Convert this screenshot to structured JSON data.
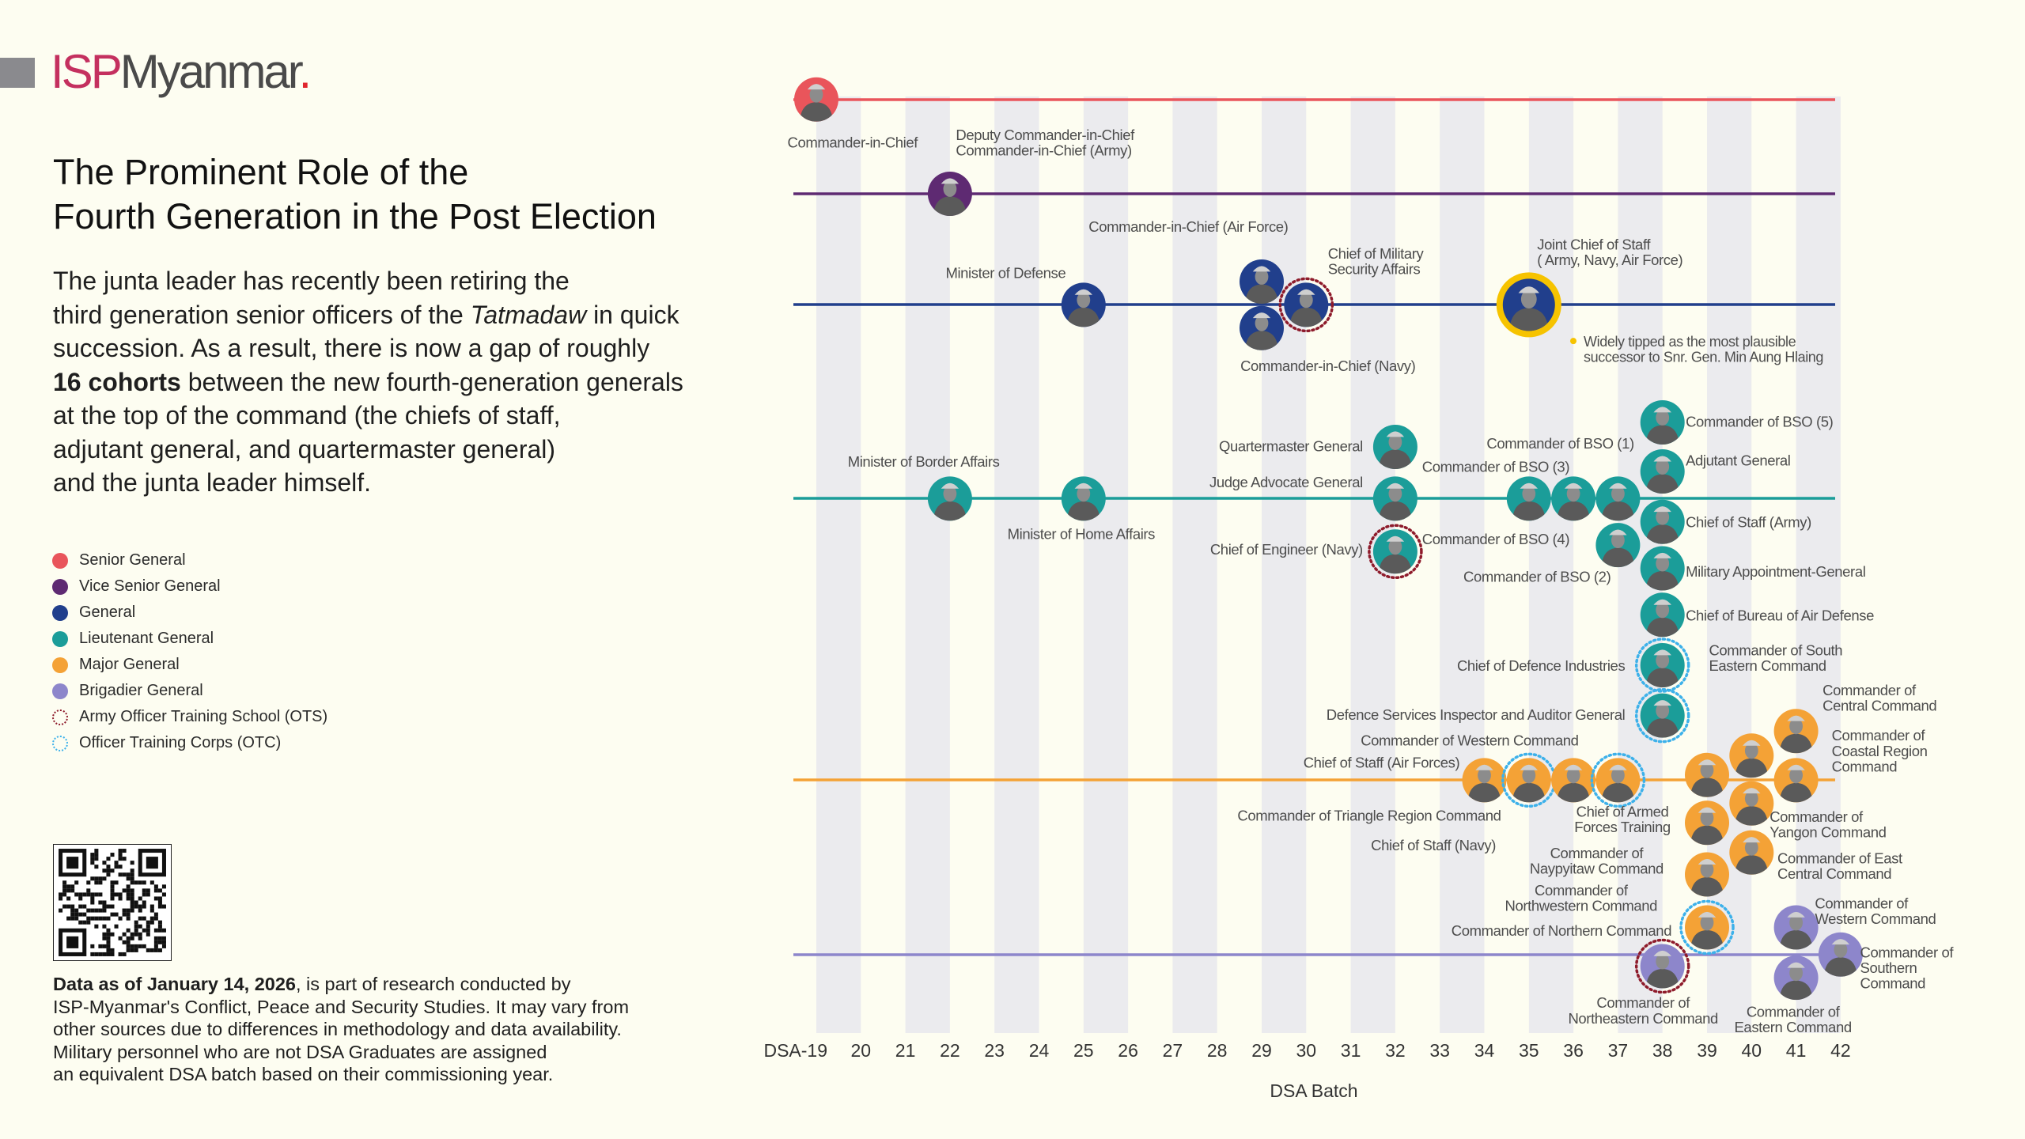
{
  "brand": {
    "part1": "ISP",
    "part2": "Myanmar",
    "dot": "."
  },
  "title": {
    "line1": "The Prominent Role of the",
    "line2": "Fourth Generation in the Post Election"
  },
  "intro": {
    "lines": [
      [
        {
          "t": "The junta leader has recently been retiring the"
        }
      ],
      [
        {
          "t": "third generation senior officers of the "
        },
        {
          "t": "Tatmadaw",
          "i": true
        },
        {
          "t": " in quick"
        }
      ],
      [
        {
          "t": "succession. As a result, there is now a gap of roughly"
        }
      ],
      [
        {
          "t": "16 cohorts",
          "b": true
        },
        {
          "t": " between the new fourth-generation generals"
        }
      ],
      [
        {
          "t": "at the top of the command (the chiefs of staff,"
        }
      ],
      [
        {
          "t": "adjutant general, and quartermaster general)"
        }
      ],
      [
        {
          "t": "and the junta leader himself."
        }
      ]
    ]
  },
  "legend": [
    {
      "label": "Senior General",
      "color": "#e9555b",
      "style": "fill"
    },
    {
      "label": "Vice Senior General",
      "color": "#5e2a72",
      "style": "fill"
    },
    {
      "label": "General",
      "color": "#213f8c",
      "style": "fill"
    },
    {
      "label": "Lieutenant General",
      "color": "#1b9d99",
      "style": "fill"
    },
    {
      "label": "Major General",
      "color": "#f4a236",
      "style": "fill"
    },
    {
      "label": "Brigadier General",
      "color": "#8d86cb",
      "style": "fill"
    },
    {
      "label": "Army Officer Training School (OTS)",
      "color": "#8e1b2b",
      "style": "dotted"
    },
    {
      "label": "Officer Training Corps (OTC)",
      "color": "#3db1ea",
      "style": "dotted"
    }
  ],
  "footer": {
    "lines": [
      [
        {
          "t": "Data as of January  14, 2026",
          "b": true
        },
        {
          "t": ", is part of research conducted by"
        }
      ],
      [
        {
          "t": "ISP-Myanmar's Conflict, Peace and Security Studies. It may vary from"
        }
      ],
      [
        {
          "t": "other sources due to differences in methodology and data availability."
        }
      ],
      [
        {
          "t": "Military personnel who are not DSA Graduates are assigned"
        }
      ],
      [
        {
          "t": "an equivalent DSA batch based on their commissioning year."
        }
      ]
    ]
  },
  "chart_data": {
    "type": "scatter",
    "xlabel": "DSA Batch",
    "x_ticks": [
      "DSA-19",
      "20",
      "21",
      "22",
      "23",
      "24",
      "25",
      "26",
      "27",
      "28",
      "29",
      "30",
      "31",
      "32",
      "33",
      "34",
      "35",
      "36",
      "37",
      "38",
      "39",
      "40",
      "41",
      "42"
    ],
    "xlim": [
      19,
      42
    ],
    "rank_lines": [
      "Senior General",
      "Vice Senior General",
      "General",
      "Lieutenant General",
      "Major General",
      "Brigadier General"
    ],
    "rank_colors": {
      "Senior General": "#e9555b",
      "Vice Senior General": "#5e2a72",
      "General": "#213f8c",
      "Lieutenant General": "#1b9d99",
      "Major General": "#f4a236",
      "Brigadier General": "#8d86cb"
    },
    "training_colors": {
      "OTS": "#8e1b2b",
      "OTC": "#3db1ea"
    },
    "highlight_color": "#f6c300",
    "annotation": {
      "lines": [
        "Widely tipped as the most plausible",
        "successor to Snr. Gen. Min Aung Hlaing"
      ]
    },
    "points": [
      {
        "label": [
          "Commander-in-Chief"
        ],
        "batch": 19,
        "rank": "Senior General"
      },
      {
        "label": [
          "Deputy Commander-in-Chief",
          "Commander-in-Chief (Army)"
        ],
        "batch": 22,
        "rank": "Vice Senior General"
      },
      {
        "label": [
          "Minister of Defense"
        ],
        "batch": 25,
        "rank": "General"
      },
      {
        "label": [
          "Commander-in-Chief (Air Force)"
        ],
        "batch": 29,
        "rank": "General"
      },
      {
        "label": [
          "Commander-in-Chief (Navy)"
        ],
        "batch": 29,
        "rank": "General"
      },
      {
        "label": [
          "Chief of Military",
          "Security Affairs"
        ],
        "batch": 30,
        "rank": "General",
        "training": "OTS"
      },
      {
        "label": [
          "Joint Chief of Staff",
          "( Army, Navy, Air Force)"
        ],
        "batch": 35,
        "rank": "General",
        "highlight": true
      },
      {
        "label": [
          "Minister of Border Affairs"
        ],
        "batch": 22,
        "rank": "Lieutenant General"
      },
      {
        "label": [
          "Minister of Home Affairs"
        ],
        "batch": 25,
        "rank": "Lieutenant General"
      },
      {
        "label": [
          "Quartermaster General"
        ],
        "batch": 32,
        "rank": "Lieutenant General"
      },
      {
        "label": [
          "Judge Advocate General"
        ],
        "batch": 32,
        "rank": "Lieutenant General"
      },
      {
        "label": [
          "Chief of Engineer (Navy)"
        ],
        "batch": 32,
        "rank": "Lieutenant General",
        "training": "OTS"
      },
      {
        "label": [
          "Commander of BSO (3)"
        ],
        "batch": 35,
        "rank": "Lieutenant General"
      },
      {
        "label": [
          "Commander of BSO (4)"
        ],
        "batch": 36,
        "rank": "Lieutenant General"
      },
      {
        "label": [
          "Commander of BSO (1)"
        ],
        "batch": 37,
        "rank": "Lieutenant General"
      },
      {
        "label": [
          "Commander of BSO (2)"
        ],
        "batch": 37,
        "rank": "Lieutenant General"
      },
      {
        "label": [
          "Commander of BSO (5)"
        ],
        "batch": 38,
        "rank": "Lieutenant General"
      },
      {
        "label": [
          "Adjutant General"
        ],
        "batch": 38,
        "rank": "Lieutenant General"
      },
      {
        "label": [
          "Chief of Staff (Army)"
        ],
        "batch": 38,
        "rank": "Lieutenant General"
      },
      {
        "label": [
          "Military Appointment-General"
        ],
        "batch": 38,
        "rank": "Lieutenant General"
      },
      {
        "label": [
          "Chief of Bureau of Air Defense"
        ],
        "batch": 38,
        "rank": "Lieutenant General"
      },
      {
        "label": [
          "Chief of Defence Industries"
        ],
        "batch": 38,
        "rank": "Lieutenant General",
        "training": "OTC"
      },
      {
        "label": [
          "Defence Services Inspector and Auditor General"
        ],
        "batch": 38,
        "rank": "Lieutenant General",
        "training": "OTC"
      },
      {
        "label": [
          "Chief of Staff (Air Forces)"
        ],
        "batch": 34,
        "rank": "Major General"
      },
      {
        "label": [
          "Commander of Triangle Region Command"
        ],
        "batch": 35,
        "rank": "Major General",
        "training": "OTC"
      },
      {
        "label": [
          "Chief of Staff (Navy)"
        ],
        "batch": 36,
        "rank": "Major General"
      },
      {
        "label": [
          "Commander of Western Command"
        ],
        "batch": 37,
        "rank": "Major General",
        "training": "OTC"
      },
      {
        "label": [
          "Chief of Armed",
          "Forces Training"
        ],
        "batch": 39,
        "rank": "Major General"
      },
      {
        "label": [
          "Commander of",
          "Naypyitaw Command"
        ],
        "batch": 39,
        "rank": "Major General"
      },
      {
        "label": [
          "Commander of",
          "Northwestern Command"
        ],
        "batch": 39,
        "rank": "Major General"
      },
      {
        "label": [
          "Commander of Northern Command"
        ],
        "batch": 39,
        "rank": "Major General",
        "training": "OTC"
      },
      {
        "label": [
          "Commander of South",
          "Eastern Command"
        ],
        "batch": 40,
        "rank": "Major General"
      },
      {
        "label": [
          "Commander of",
          "Yangon Command"
        ],
        "batch": 40,
        "rank": "Major General"
      },
      {
        "label": [
          "Commander of East",
          "Central Command"
        ],
        "batch": 40,
        "rank": "Major General"
      },
      {
        "label": [
          "Commander of",
          "Central Command"
        ],
        "batch": 41,
        "rank": "Major General"
      },
      {
        "label": [
          "Commander of",
          "Coastal Region",
          "Command"
        ],
        "batch": 41,
        "rank": "Major General"
      },
      {
        "label": [
          "Commander of",
          "Northeastern Command"
        ],
        "batch": 38,
        "rank": "Brigadier General",
        "training": "OTS"
      },
      {
        "label": [
          "Commander of",
          "Western Command"
        ],
        "batch": 41,
        "rank": "Brigadier General"
      },
      {
        "label": [
          "Commander of",
          "Eastern Command"
        ],
        "batch": 41,
        "rank": "Brigadier General"
      },
      {
        "label": [
          "Commander of",
          "Southern",
          "Command"
        ],
        "batch": 42,
        "rank": "Brigadier General"
      }
    ]
  }
}
